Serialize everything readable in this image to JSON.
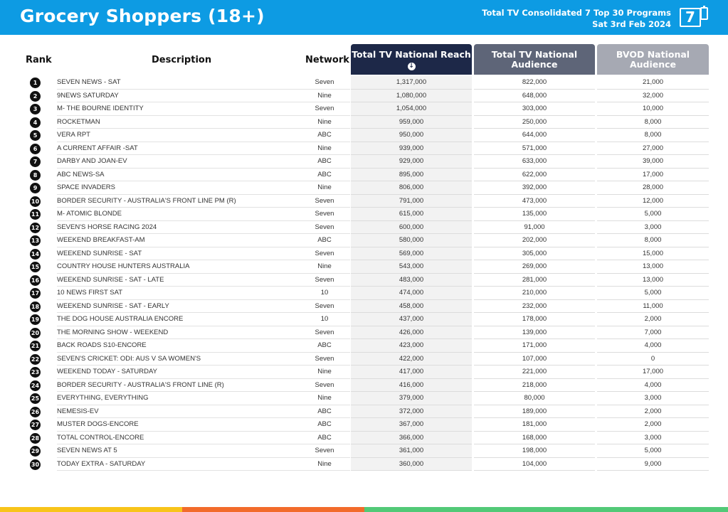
{
  "header": {
    "title": "Grocery Shoppers (18+)",
    "subtitle_line1": "Total TV Consolidated 7 Top 30 Programs",
    "subtitle_line2": "Sat 3rd Feb 2024",
    "page_number": "7",
    "device_icon": "mobile-phone-icon"
  },
  "columns": {
    "rank": "Rank",
    "description": "Description",
    "network": "Network",
    "reach": "Total TV National Reach",
    "sort_icon": "arrow-down-circle-icon",
    "audience": "Total TV National Audience",
    "bvod": "BVOD National Audience"
  },
  "colors": {
    "header_bg": "#0d9be3",
    "reach_head": "#1d2848",
    "audience_head": "#5e6578",
    "bvod_head": "#a6a9b3",
    "footer": [
      "#f8c41a",
      "#f26b2b",
      "#52c977"
    ]
  },
  "rows": [
    {
      "rank": "1",
      "description": "SEVEN NEWS - SAT",
      "network": "Seven",
      "reach": "1,317,000",
      "audience": "822,000",
      "bvod": "21,000"
    },
    {
      "rank": "2",
      "description": "9NEWS SATURDAY",
      "network": "Nine",
      "reach": "1,080,000",
      "audience": "648,000",
      "bvod": "32,000"
    },
    {
      "rank": "3",
      "description": "M- THE BOURNE IDENTITY",
      "network": "Seven",
      "reach": "1,054,000",
      "audience": "303,000",
      "bvod": "10,000"
    },
    {
      "rank": "4",
      "description": "ROCKETMAN",
      "network": "Nine",
      "reach": "959,000",
      "audience": "250,000",
      "bvod": "8,000"
    },
    {
      "rank": "5",
      "description": "VERA RPT",
      "network": "ABC",
      "reach": "950,000",
      "audience": "644,000",
      "bvod": "8,000"
    },
    {
      "rank": "6",
      "description": "A CURRENT AFFAIR -SAT",
      "network": "Nine",
      "reach": "939,000",
      "audience": "571,000",
      "bvod": "27,000"
    },
    {
      "rank": "7",
      "description": "DARBY AND JOAN-EV",
      "network": "ABC",
      "reach": "929,000",
      "audience": "633,000",
      "bvod": "39,000"
    },
    {
      "rank": "8",
      "description": "ABC NEWS-SA",
      "network": "ABC",
      "reach": "895,000",
      "audience": "622,000",
      "bvod": "17,000"
    },
    {
      "rank": "9",
      "description": "SPACE INVADERS",
      "network": "Nine",
      "reach": "806,000",
      "audience": "392,000",
      "bvod": "28,000"
    },
    {
      "rank": "10",
      "description": "BORDER SECURITY - AUSTRALIA'S FRONT LINE PM (R)",
      "network": "Seven",
      "reach": "791,000",
      "audience": "473,000",
      "bvod": "12,000"
    },
    {
      "rank": "11",
      "description": "M- ATOMIC BLONDE",
      "network": "Seven",
      "reach": "615,000",
      "audience": "135,000",
      "bvod": "5,000"
    },
    {
      "rank": "12",
      "description": "SEVEN'S HORSE RACING 2024",
      "network": "Seven",
      "reach": "600,000",
      "audience": "91,000",
      "bvod": "3,000"
    },
    {
      "rank": "13",
      "description": "WEEKEND BREAKFAST-AM",
      "network": "ABC",
      "reach": "580,000",
      "audience": "202,000",
      "bvod": "8,000"
    },
    {
      "rank": "14",
      "description": "WEEKEND SUNRISE - SAT",
      "network": "Seven",
      "reach": "569,000",
      "audience": "305,000",
      "bvod": "15,000"
    },
    {
      "rank": "15",
      "description": "COUNTRY HOUSE HUNTERS AUSTRALIA",
      "network": "Nine",
      "reach": "543,000",
      "audience": "269,000",
      "bvod": "13,000"
    },
    {
      "rank": "16",
      "description": "WEEKEND SUNRISE - SAT - LATE",
      "network": "Seven",
      "reach": "483,000",
      "audience": "281,000",
      "bvod": "13,000"
    },
    {
      "rank": "17",
      "description": "10 NEWS FIRST SAT",
      "network": "10",
      "reach": "474,000",
      "audience": "210,000",
      "bvod": "5,000"
    },
    {
      "rank": "18",
      "description": "WEEKEND SUNRISE - SAT - EARLY",
      "network": "Seven",
      "reach": "458,000",
      "audience": "232,000",
      "bvod": "11,000"
    },
    {
      "rank": "19",
      "description": "THE DOG HOUSE AUSTRALIA ENCORE",
      "network": "10",
      "reach": "437,000",
      "audience": "178,000",
      "bvod": "2,000"
    },
    {
      "rank": "20",
      "description": "THE MORNING SHOW - WEEKEND",
      "network": "Seven",
      "reach": "426,000",
      "audience": "139,000",
      "bvod": "7,000"
    },
    {
      "rank": "21",
      "description": "BACK ROADS S10-ENCORE",
      "network": "ABC",
      "reach": "423,000",
      "audience": "171,000",
      "bvod": "4,000"
    },
    {
      "rank": "22",
      "description": "SEVEN'S CRICKET: ODI: AUS V SA WOMEN'S",
      "network": "Seven",
      "reach": "422,000",
      "audience": "107,000",
      "bvod": "0"
    },
    {
      "rank": "23",
      "description": "WEEKEND TODAY - SATURDAY",
      "network": "Nine",
      "reach": "417,000",
      "audience": "221,000",
      "bvod": "17,000"
    },
    {
      "rank": "24",
      "description": "BORDER SECURITY - AUSTRALIA'S FRONT LINE (R)",
      "network": "Seven",
      "reach": "416,000",
      "audience": "218,000",
      "bvod": "4,000"
    },
    {
      "rank": "25",
      "description": "EVERYTHING, EVERYTHING",
      "network": "Nine",
      "reach": "379,000",
      "audience": "80,000",
      "bvod": "3,000"
    },
    {
      "rank": "26",
      "description": "NEMESIS-EV",
      "network": "ABC",
      "reach": "372,000",
      "audience": "189,000",
      "bvod": "2,000"
    },
    {
      "rank": "27",
      "description": "MUSTER DOGS-ENCORE",
      "network": "ABC",
      "reach": "367,000",
      "audience": "181,000",
      "bvod": "2,000"
    },
    {
      "rank": "28",
      "description": "TOTAL CONTROL-ENCORE",
      "network": "ABC",
      "reach": "366,000",
      "audience": "168,000",
      "bvod": "3,000"
    },
    {
      "rank": "29",
      "description": "SEVEN NEWS AT 5",
      "network": "Seven",
      "reach": "361,000",
      "audience": "198,000",
      "bvod": "5,000"
    },
    {
      "rank": "30",
      "description": "TODAY EXTRA - SATURDAY",
      "network": "Nine",
      "reach": "360,000",
      "audience": "104,000",
      "bvod": "9,000"
    }
  ]
}
